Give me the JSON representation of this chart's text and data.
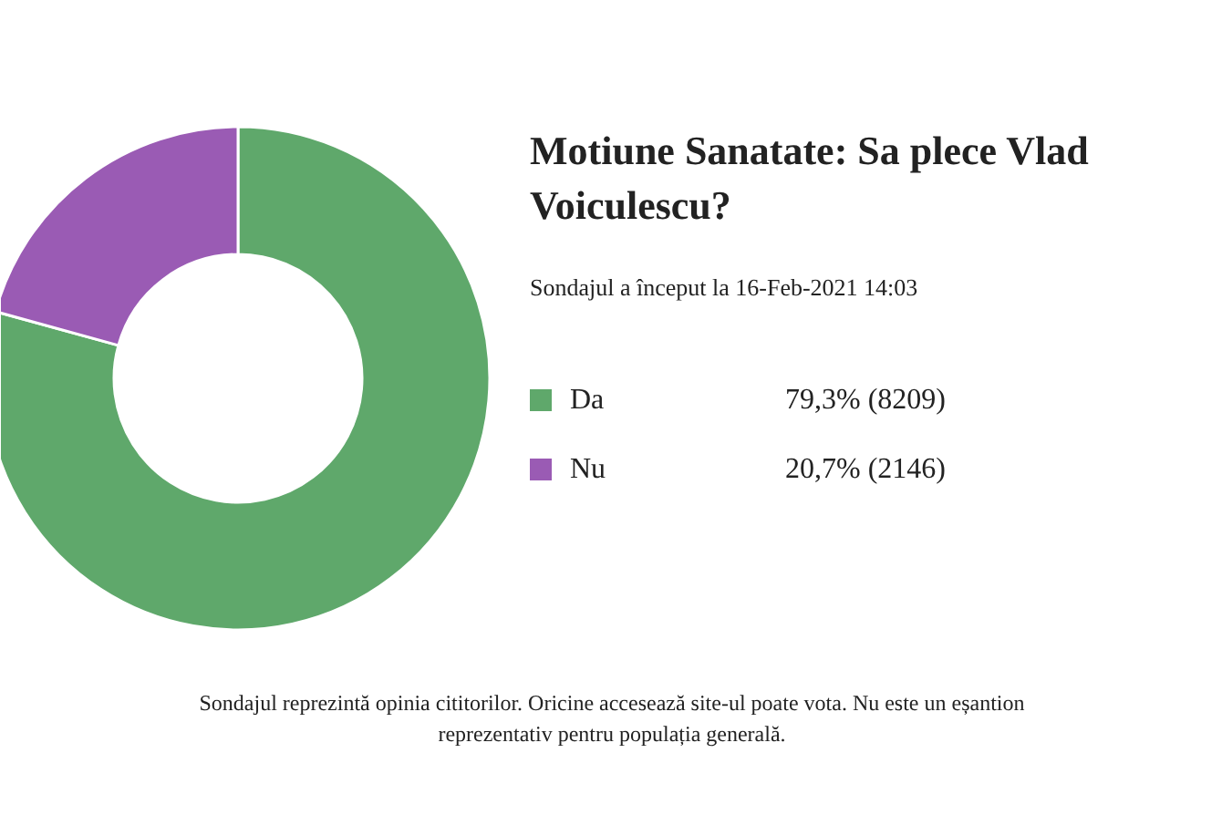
{
  "chart_data": {
    "type": "donut",
    "title": "Motiune Sanatate: Sa plece Vlad Voiculescu?",
    "subtitle": "Sondajul a început la 16-Feb-2021 14:03",
    "categories": [
      "Da",
      "Nu"
    ],
    "values": [
      8209,
      2146
    ],
    "colors": [
      "#5fa86b",
      "#9a5bb4"
    ],
    "value_labels": [
      "79,3% (8209)",
      "20,7% (2146)"
    ],
    "legend": "right",
    "annotations": [
      "Sondajul reprezintă opinia cititorilor. Oricine accesează site-ul poate vota. Nu este un eșantion reprezentativ pentru populația generală."
    ]
  }
}
